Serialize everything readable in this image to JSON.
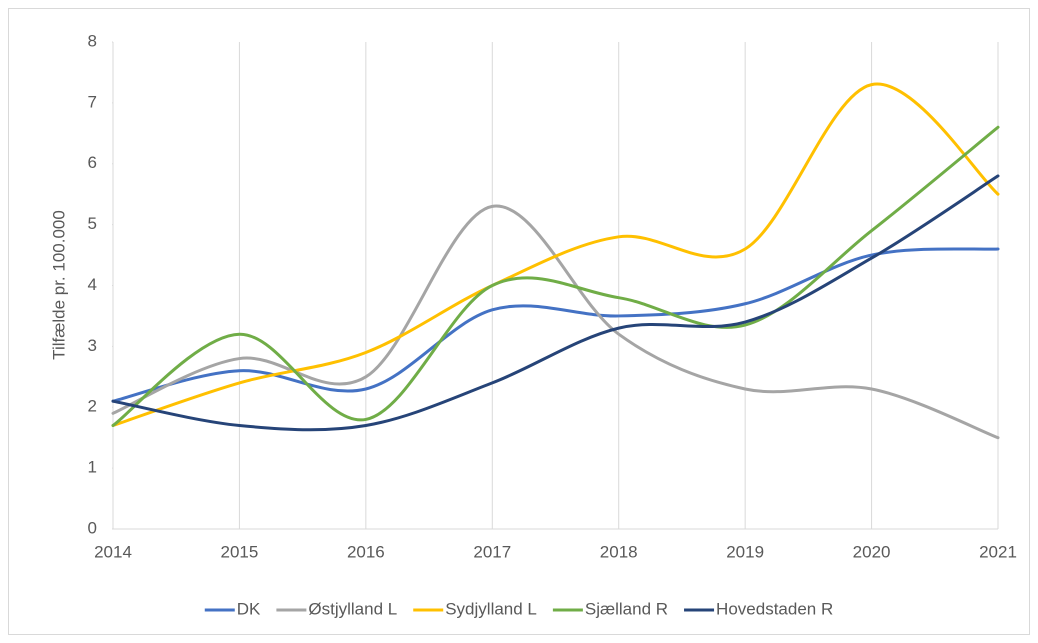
{
  "chart_data": {
    "type": "line",
    "y_label": "Tilfælde pr. 100.000",
    "x": [
      2014,
      2015,
      2016,
      2017,
      2018,
      2019,
      2020,
      2021
    ],
    "xlim": [
      2014,
      2021
    ],
    "xticks": [
      2014,
      2015,
      2016,
      2017,
      2018,
      2019,
      2020,
      2021
    ],
    "ylim": [
      0,
      8
    ],
    "yticks": [
      0,
      1,
      2,
      3,
      4,
      5,
      6,
      7,
      8
    ],
    "grid": "x",
    "smooth": true,
    "legend": "bottom",
    "series": [
      {
        "name": "DK",
        "color": "#4472c4",
        "values": [
          2.1,
          2.6,
          2.3,
          3.6,
          3.5,
          3.7,
          4.5,
          4.6
        ]
      },
      {
        "name": "Østjylland L",
        "color": "#a5a5a5",
        "values": [
          1.9,
          2.8,
          2.5,
          5.3,
          3.2,
          2.3,
          2.3,
          1.5
        ]
      },
      {
        "name": "Sydjylland L",
        "color": "#ffc000",
        "values": [
          1.7,
          2.4,
          2.9,
          4.0,
          4.8,
          4.6,
          7.3,
          5.5
        ]
      },
      {
        "name": "Sjælland R",
        "color": "#70ad47",
        "values": [
          1.7,
          3.2,
          1.8,
          4.0,
          3.8,
          3.35,
          4.9,
          6.6
        ]
      },
      {
        "name": "Hovedstaden R",
        "color": "#264478",
        "values": [
          2.1,
          1.7,
          1.7,
          2.4,
          3.3,
          3.4,
          4.45,
          5.8
        ]
      }
    ]
  }
}
